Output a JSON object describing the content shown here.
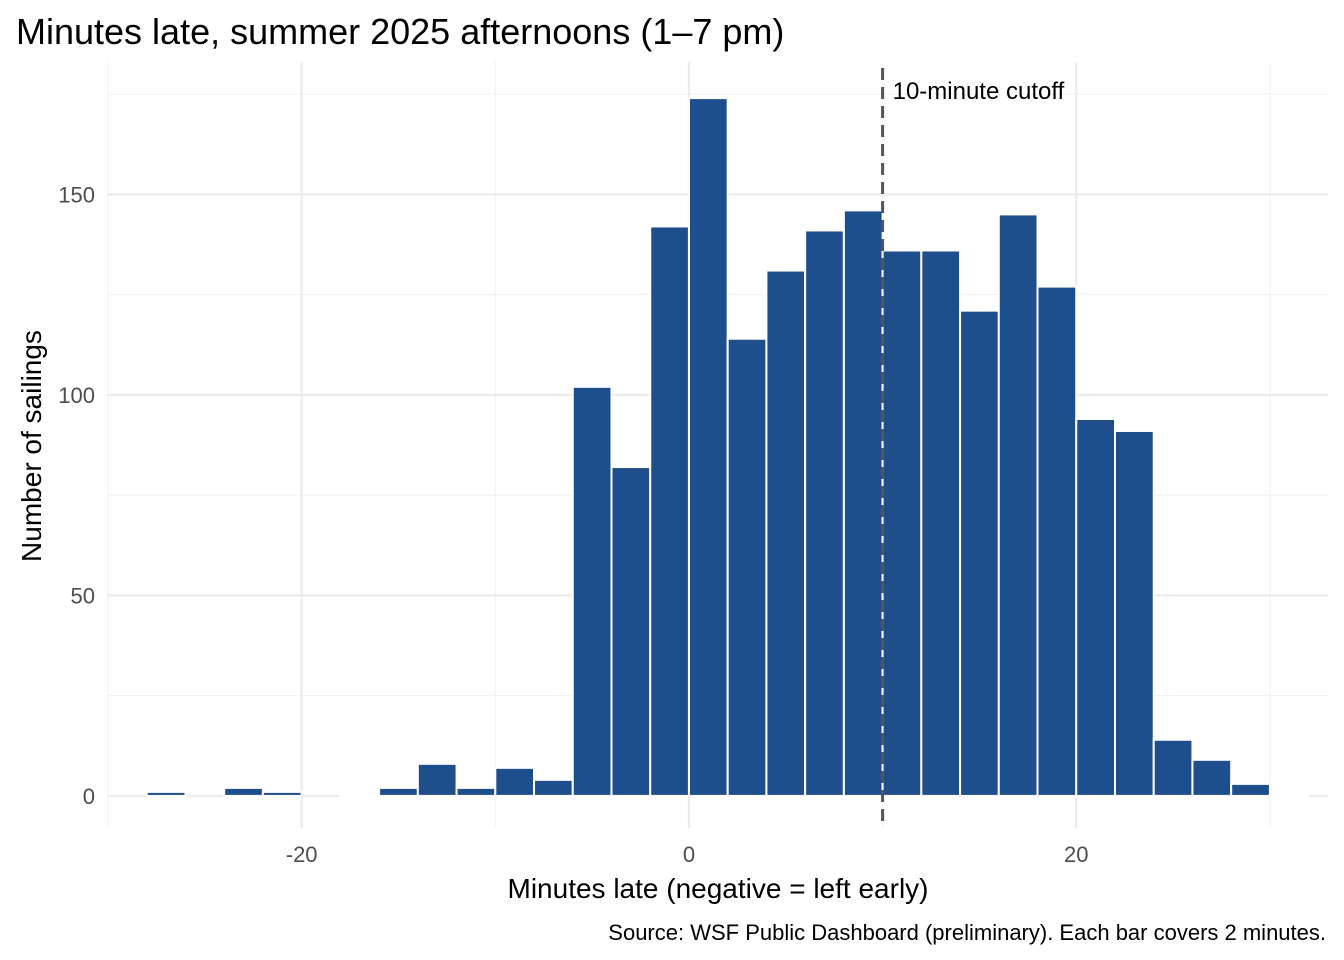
{
  "chart_data": {
    "type": "bar",
    "title": "Minutes late, summer 2025 afternoons (1–7 pm)",
    "xlabel": "Minutes late (negative = left early)",
    "ylabel": "Number of sailings",
    "caption": "Source: WSF Public Dashboard (preliminary). Each bar covers 2 minutes.",
    "bin_width": 2,
    "xlim": [
      -30,
      33
    ],
    "ylim": [
      -8,
      183
    ],
    "x_ticks": [
      -20,
      0,
      20
    ],
    "x_tick_labels": [
      "-20",
      "0",
      "20"
    ],
    "y_ticks": [
      0,
      50,
      100,
      150
    ],
    "y_tick_labels": [
      "0",
      "50",
      "100",
      "150"
    ],
    "bins": [
      {
        "center": -27,
        "count": 1
      },
      {
        "center": -25,
        "count": 0
      },
      {
        "center": -23,
        "count": 2
      },
      {
        "center": -21,
        "count": 1
      },
      {
        "center": -19,
        "count": 0
      },
      {
        "center": -17,
        "count": 0.3
      },
      {
        "center": -15,
        "count": 2
      },
      {
        "center": -13,
        "count": 8
      },
      {
        "center": -11,
        "count": 2
      },
      {
        "center": -9,
        "count": 7
      },
      {
        "center": -7,
        "count": 4
      },
      {
        "center": -5,
        "count": 102
      },
      {
        "center": -3,
        "count": 82
      },
      {
        "center": -1,
        "count": 142
      },
      {
        "center": 1,
        "count": 174
      },
      {
        "center": 3,
        "count": 114
      },
      {
        "center": 5,
        "count": 131
      },
      {
        "center": 7,
        "count": 141
      },
      {
        "center": 9,
        "count": 146
      },
      {
        "center": 11,
        "count": 136
      },
      {
        "center": 13,
        "count": 136
      },
      {
        "center": 15,
        "count": 121
      },
      {
        "center": 17,
        "count": 145
      },
      {
        "center": 19,
        "count": 127
      },
      {
        "center": 21,
        "count": 94
      },
      {
        "center": 23,
        "count": 91
      },
      {
        "center": 25,
        "count": 14
      },
      {
        "center": 27,
        "count": 9
      },
      {
        "center": 29,
        "count": 3
      },
      {
        "center": 31,
        "count": 0.3
      }
    ],
    "reference_line": {
      "x": 10,
      "label": "10-minute cutoff",
      "style": "dashed"
    },
    "bar_color": "#1F4E8C",
    "grid": true,
    "legend": "none"
  }
}
